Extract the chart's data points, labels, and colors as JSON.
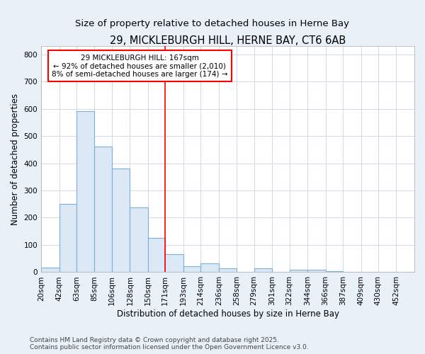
{
  "title": "29, MICKLEBURGH HILL, HERNE BAY, CT6 6AB",
  "subtitle": "Size of property relative to detached houses in Herne Bay",
  "xlabel": "Distribution of detached houses by size in Herne Bay",
  "ylabel": "Number of detached properties",
  "bin_labels": [
    "20sqm",
    "42sqm",
    "63sqm",
    "85sqm",
    "106sqm",
    "128sqm",
    "150sqm",
    "171sqm",
    "193sqm",
    "214sqm",
    "236sqm",
    "258sqm",
    "279sqm",
    "301sqm",
    "322sqm",
    "344sqm",
    "366sqm",
    "387sqm",
    "409sqm",
    "430sqm",
    "452sqm"
  ],
  "bin_edges": [
    20,
    42,
    63,
    85,
    106,
    128,
    150,
    171,
    193,
    214,
    236,
    258,
    279,
    301,
    322,
    344,
    366,
    387,
    409,
    430,
    452
  ],
  "bar_heights": [
    18,
    250,
    590,
    460,
    380,
    237,
    125,
    65,
    22,
    33,
    15,
    0,
    13,
    0,
    8,
    8,
    4,
    1,
    1,
    0,
    0
  ],
  "bar_color": "#dce8f5",
  "bar_edge_color": "#7ab0d4",
  "property_line_x": 171,
  "property_line_color": "red",
  "annotation_text": "29 MICKLEBURGH HILL: 167sqm\n← 92% of detached houses are smaller (2,010)\n8% of semi-detached houses are larger (174) →",
  "annotation_box_color": "white",
  "annotation_box_edge": "red",
  "ylim": [
    0,
    830
  ],
  "yticks": [
    0,
    100,
    200,
    300,
    400,
    500,
    600,
    700,
    800
  ],
  "fig_background_color": "#e8f0f8",
  "plot_background_color": "#ffffff",
  "grid_color": "#c8d4e0",
  "footer_line1": "Contains HM Land Registry data © Crown copyright and database right 2025.",
  "footer_line2": "Contains public sector information licensed under the Open Government Licence v3.0.",
  "title_fontsize": 10.5,
  "subtitle_fontsize": 9.5,
  "axis_label_fontsize": 8.5,
  "tick_fontsize": 7.5,
  "annotation_fontsize": 7.5,
  "footer_fontsize": 6.5
}
